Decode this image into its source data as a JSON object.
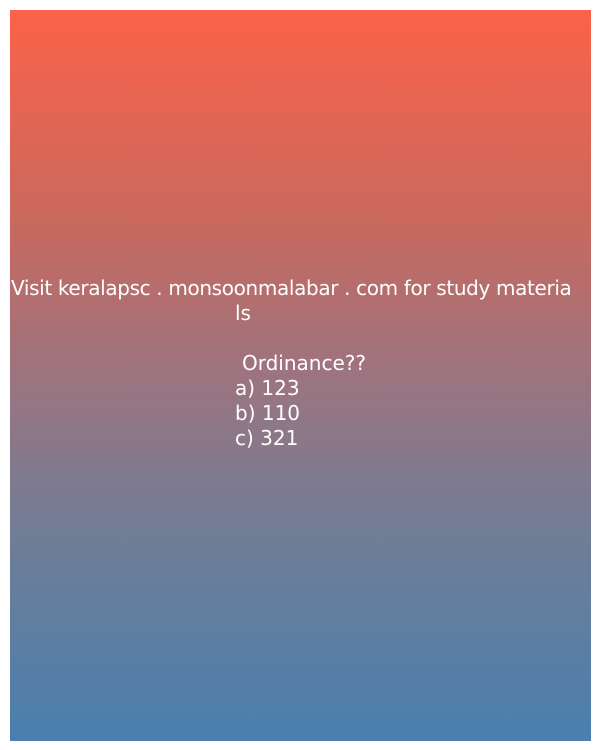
{
  "watermark": {
    "line1": "Visit keralapsc . monsoonmalabar . com for study materia",
    "line2": "ls"
  },
  "question": {
    "text": "Ordinance??",
    "options": [
      {
        "label": "a) 123"
      },
      {
        "label": "b) 110"
      },
      {
        "label": "c) 321"
      }
    ]
  },
  "colors": {
    "gradient_top": "#fc6249",
    "gradient_bottom": "#4a7fae",
    "text": "#ffffff"
  }
}
